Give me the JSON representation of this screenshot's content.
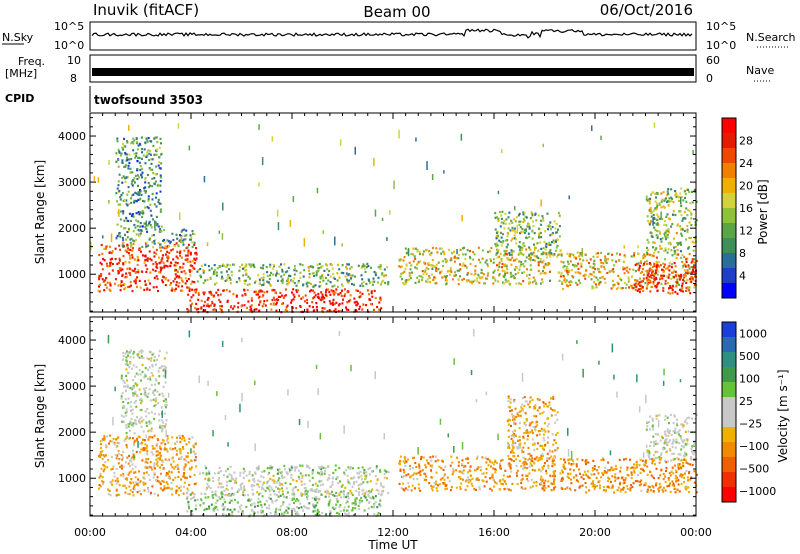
{
  "header": {
    "station": "Inuvik (fitACF)",
    "beam": "Beam 00",
    "date": "06/Oct/2016"
  },
  "strips": {
    "nsky_label": "N.Sky",
    "nsky_ticks": [
      "10^5",
      "10^0"
    ],
    "nsearch_label": "N.Search",
    "freq_label": "Freq.",
    "freq_unit": "[MHz]",
    "freq_ticks": [
      "10",
      "8"
    ],
    "nave_label": "Nave",
    "nave_ticks": [
      "60",
      "0"
    ],
    "cpid_label": "CPID",
    "cpid_value": "twofsound 3503"
  },
  "chart_data": [
    {
      "type": "heatmap",
      "title": "",
      "xlabel": "Time UT",
      "ylabel": "Slant Range [km]",
      "x_ticks": [
        "00:00",
        "04:00",
        "08:00",
        "12:00",
        "16:00",
        "20:00",
        "00:00"
      ],
      "xlim_hours": [
        0,
        24
      ],
      "y_ticks": [
        1000,
        2000,
        3000,
        4000
      ],
      "ylim": [
        180,
        4500
      ],
      "colorbar": {
        "label": "Power [dB]",
        "ticks": [
          "4",
          "8",
          "12",
          "16",
          "20",
          "24",
          "28"
        ],
        "colors": [
          "#0000ff",
          "#1f3fc8",
          "#2a6f9a",
          "#3f8f5a",
          "#5aa646",
          "#8fc23a",
          "#d2d23a",
          "#f0b000",
          "#f08000",
          "#f04800",
          "#e61a00",
          "#ff0000"
        ]
      },
      "regions": [
        {
          "t0": 0.3,
          "t1": 4.2,
          "r0": 650,
          "r1": 1700,
          "level": 0.85
        },
        {
          "t0": 1.0,
          "t1": 4.2,
          "r0": 1600,
          "r1": 2000,
          "level": 0.35
        },
        {
          "t0": 3.8,
          "t1": 11.5,
          "r0": 200,
          "r1": 700,
          "level": 0.9
        },
        {
          "t0": 4.2,
          "t1": 11.8,
          "r0": 750,
          "r1": 1250,
          "level": 0.4
        },
        {
          "t0": 12.2,
          "t1": 18.2,
          "r0": 800,
          "r1": 1600,
          "level": 0.55
        },
        {
          "t0": 16.0,
          "t1": 18.6,
          "r0": 1400,
          "r1": 2400,
          "level": 0.4
        },
        {
          "t0": 18.5,
          "t1": 24.0,
          "r0": 700,
          "r1": 1500,
          "level": 0.6
        },
        {
          "t0": 21.5,
          "t1": 24.0,
          "r0": 600,
          "r1": 1300,
          "level": 0.9
        },
        {
          "t0": 22.0,
          "t1": 24.0,
          "r0": 1500,
          "r1": 2900,
          "level": 0.45
        },
        {
          "t0": 1.0,
          "t1": 2.8,
          "r0": 2000,
          "r1": 4000,
          "level": 0.3
        }
      ]
    },
    {
      "type": "heatmap",
      "title": "",
      "xlabel": "Time UT",
      "ylabel": "Slant Range [km]",
      "x_ticks": [
        "00:00",
        "04:00",
        "08:00",
        "12:00",
        "16:00",
        "20:00",
        "00:00"
      ],
      "xlim_hours": [
        0,
        24
      ],
      "y_ticks": [
        1000,
        2000,
        3000,
        4000
      ],
      "ylim": [
        180,
        4500
      ],
      "colorbar": {
        "label": "Velocity [m s⁻¹]",
        "ticks": [
          "1000",
          "500",
          "100",
          "25",
          "−25",
          "−100",
          "−500",
          "−1000"
        ],
        "colors": [
          "#1a3fd8",
          "#2a6ab0",
          "#2f8f80",
          "#3f9a4a",
          "#66c23a",
          "#c8c8c8",
          "#c8c8c8",
          "#f0b000",
          "#f08a00",
          "#f06000",
          "#f03000",
          "#ff0000"
        ]
      },
      "regions": [
        {
          "t0": 0.3,
          "t1": 4.2,
          "r0": 650,
          "r1": 1950,
          "vel": -300
        },
        {
          "t0": 3.8,
          "t1": 11.5,
          "r0": 200,
          "r1": 700,
          "vel": 200
        },
        {
          "t0": 4.5,
          "t1": 11.8,
          "r0": 650,
          "r1": 1100,
          "vel": 0
        },
        {
          "t0": 4.2,
          "t1": 11.8,
          "r0": 1100,
          "r1": 1300,
          "vel": 120
        },
        {
          "t0": 12.2,
          "t1": 18.4,
          "r0": 750,
          "r1": 1500,
          "vel": -350
        },
        {
          "t0": 16.5,
          "t1": 18.5,
          "r0": 1400,
          "r1": 2800,
          "vel": -300
        },
        {
          "t0": 18.5,
          "t1": 24.0,
          "r0": 700,
          "r1": 1450,
          "vel": -400
        },
        {
          "t0": 22.0,
          "t1": 24.0,
          "r0": 1400,
          "r1": 2400,
          "vel": 0
        },
        {
          "t0": 1.2,
          "t1": 3.0,
          "r0": 2000,
          "r1": 3800,
          "vel": 50
        }
      ]
    }
  ]
}
